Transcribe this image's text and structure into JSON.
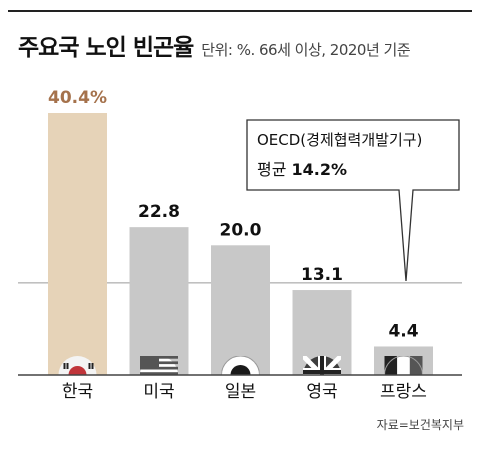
{
  "header": {
    "title": "주요국 노인 빈곤율",
    "subtitle": "단위: %. 66세 이상, 2020년 기준"
  },
  "callout": {
    "line1": "OECD(경제협력개발기구)",
    "line2_prefix": "평균 ",
    "line2_value": "14.2%"
  },
  "source": "자료=보건복지부",
  "colors": {
    "highlight_bar": "#e6d3b8",
    "bar": "#c8c8c8",
    "highlight_label": "#a5724c",
    "label": "#111111",
    "baseline": "#444444"
  },
  "chart_data": {
    "type": "bar",
    "title": "주요국 노인 빈곤율",
    "categories": [
      "한국",
      "미국",
      "일본",
      "영국",
      "프랑스"
    ],
    "values": [
      40.4,
      22.8,
      20.0,
      13.1,
      4.4
    ],
    "value_labels": [
      "40.4%",
      "22.8",
      "20.0",
      "13.1",
      "4.4"
    ],
    "flags": [
      "south-korea-flag-icon",
      "usa-flag-icon",
      "japan-flag-icon",
      "uk-flag-icon",
      "france-flag-icon"
    ],
    "highlight_index": 0,
    "reference_line": {
      "value": 14.2,
      "label": "OECD(경제협력개발기구) 평균 14.2%"
    },
    "ylim": [
      0,
      45
    ]
  }
}
